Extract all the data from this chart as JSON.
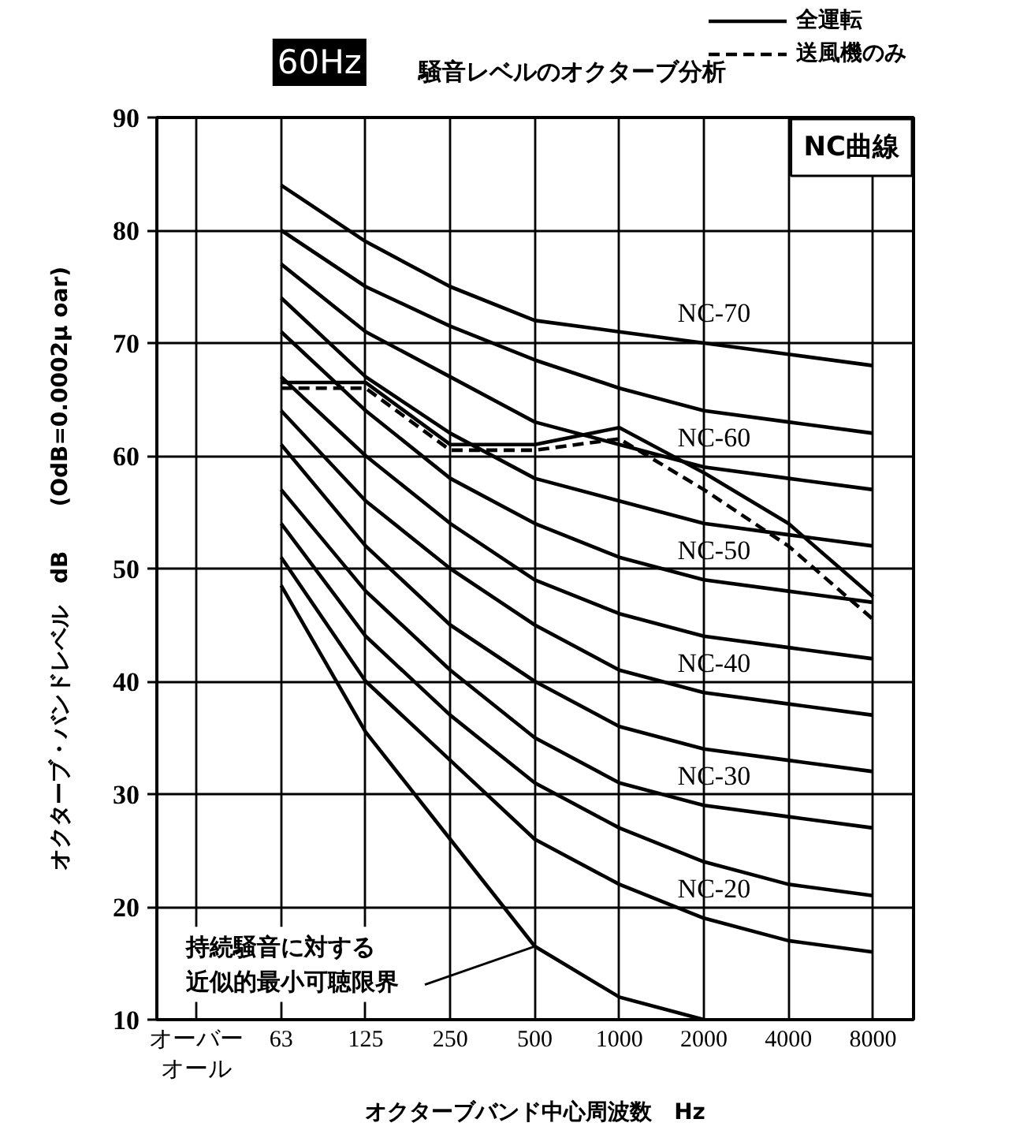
{
  "chart_data": {
    "type": "line",
    "title": "騒音レベルのオクターブ分析",
    "xlabel": "オクターブバンド中心周波数　Hz",
    "ylabel": "オクターブ・バンドレベル　dB　　(OdB=0.0002μ oar)",
    "categories": [
      "オーバーオール",
      "63",
      "125",
      "250",
      "500",
      "1000",
      "2000",
      "4000",
      "8000"
    ],
    "ylim": [
      10,
      90
    ],
    "yticks": [
      10,
      20,
      30,
      40,
      50,
      60,
      70,
      80,
      90
    ],
    "grid": true,
    "legend": "top right",
    "line_style": "solid",
    "annotations": [
      "60Hz",
      "NC曲線",
      {
        "text": "持続騒音に対する近似的最小可聴限界",
        "x": "500",
        "y": 16.5
      },
      {
        "text": "NC-70",
        "x": "2000",
        "y": 70
      },
      {
        "text": "NC-60",
        "x": "2000",
        "y": 59
      },
      {
        "text": "NC-50",
        "x": "2000",
        "y": 49
      },
      {
        "text": "NC-40",
        "x": "2000",
        "y": 39
      },
      {
        "text": "NC-30",
        "x": "2000",
        "y": 29
      },
      {
        "text": "NC-20",
        "x": "2000",
        "y": 19
      }
    ],
    "series": [
      {
        "color": "#000000",
        "values": [
          null,
          84,
          79,
          75,
          72,
          71,
          70,
          69,
          68
        ]
      },
      {
        "color": "#000000",
        "values": [
          null,
          80,
          75,
          71.5,
          68.5,
          66,
          64,
          63,
          62
        ]
      },
      {
        "color": "#000000",
        "values": [
          null,
          77,
          71,
          67,
          63,
          61,
          59,
          58,
          57
        ]
      },
      {
        "color": "#000000",
        "values": [
          null,
          74,
          67,
          62,
          58,
          56,
          54,
          53,
          52
        ]
      },
      {
        "color": "#000000",
        "values": [
          null,
          71,
          64,
          58,
          54,
          51,
          49,
          48,
          47
        ]
      },
      {
        "color": "#000000",
        "values": [
          null,
          67,
          60,
          54,
          49,
          46,
          44,
          43,
          42
        ]
      },
      {
        "color": "#000000",
        "values": [
          null,
          64,
          56,
          50,
          45,
          41,
          39,
          38,
          37
        ]
      },
      {
        "color": "#000000",
        "values": [
          null,
          61,
          52,
          45,
          40,
          36,
          34,
          33,
          32
        ]
      },
      {
        "color": "#000000",
        "values": [
          null,
          57,
          48,
          41,
          35,
          31,
          29,
          28,
          27
        ]
      },
      {
        "color": "#000000",
        "values": [
          null,
          54,
          44,
          37,
          31,
          27,
          24,
          22,
          21
        ]
      },
      {
        "color": "#000000",
        "values": [
          null,
          51,
          40,
          33,
          26,
          22,
          19,
          17,
          16
        ]
      },
      {
        "color": "#000000",
        "values": [
          null,
          48.5,
          35.5,
          26,
          16.5,
          12,
          10,
          null,
          null
        ]
      },
      {
        "name": "全運転",
        "color": "#000000",
        "line_style": "solid",
        "values": [
          null,
          66.5,
          66.5,
          61,
          61,
          62.5,
          58.5,
          54,
          47.5
        ]
      },
      {
        "name": "送風機のみ",
        "color": "#000000",
        "line_style": "dashed",
        "values": [
          null,
          66,
          66,
          60.5,
          60.5,
          61.5,
          57,
          52,
          45.5
        ]
      }
    ]
  }
}
